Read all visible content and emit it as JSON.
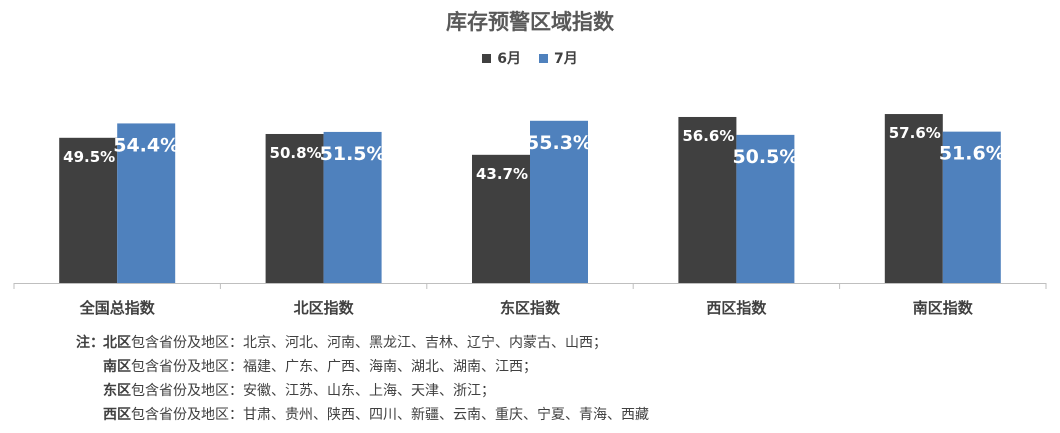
{
  "chart_data": {
    "type": "bar",
    "title": "库存预警区域指数",
    "categories": [
      "全国总指数",
      "北区指数",
      "东区指数",
      "西区指数",
      "南区指数"
    ],
    "series": [
      {
        "name": "6月",
        "values": [
          49.5,
          50.8,
          43.7,
          56.6,
          57.6
        ],
        "labels": [
          "49.5%",
          "50.8%",
          "43.7%",
          "56.6%",
          "57.6%"
        ],
        "color": "#404040"
      },
      {
        "name": "7月",
        "values": [
          54.4,
          51.5,
          55.3,
          50.5,
          51.6
        ],
        "labels": [
          "54.4%",
          "51.5%",
          "55.3%",
          "50.5%",
          "51.6%"
        ],
        "color": "#4f81bd"
      }
    ],
    "unit": "%",
    "ylim": [
      0,
      60
    ],
    "grid": false,
    "legend_position": "top-center"
  },
  "notes": [
    {
      "prefix": "注：",
      "region": "北区",
      "text": "包含省份及地区：北京、河北、河南、黑龙江、吉林、辽宁、内蒙古、山西；"
    },
    {
      "prefix": "",
      "region": "南区",
      "text": "包含省份及地区：福建、广东、广西、海南、湖北、湖南、江西；"
    },
    {
      "prefix": "",
      "region": "东区",
      "text": "包含省份及地区：安徽、江苏、山东、上海、天津、浙江；"
    },
    {
      "prefix": "",
      "region": "西区",
      "text": "包含省份及地区：甘肃、贵州、陕西、四川、新疆、云南、重庆、宁夏、青海、西藏"
    }
  ]
}
